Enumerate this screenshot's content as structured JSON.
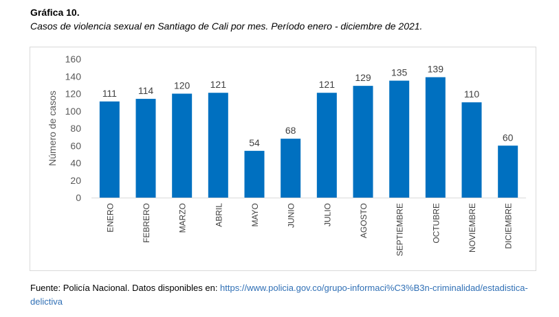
{
  "figure": {
    "title": "Gráfica 10.",
    "subtitle": "Casos de violencia sexual en Santiago de Cali por mes. Período enero - diciembre de 2021."
  },
  "source": {
    "prefix": "Fuente: Policía Nacional. Datos disponibles en: ",
    "link_text": "https://www.policia.gov.co/grupo-informaci%C3%B3n-criminalidad/estadistica-delictiva"
  },
  "colors": {
    "bar": "#0070c0",
    "axis_text": "#595959",
    "axis_line": "#d9d9d9"
  },
  "chart_data": {
    "type": "bar",
    "title": "",
    "xlabel": "",
    "ylabel": "Número de casos",
    "ylim": [
      0,
      160
    ],
    "yticks": [
      0,
      20,
      40,
      60,
      80,
      100,
      120,
      140,
      160
    ],
    "grid": false,
    "categories": [
      "ENERO",
      "FEBRERO",
      "MARZO",
      "ABRIL",
      "MAYO",
      "JUNIO",
      "JULIO",
      "AGOSTO",
      "SEPTIEMBRE",
      "OCTUBRE",
      "NOVIEMBRE",
      "DICIEMBRE"
    ],
    "values": [
      111,
      114,
      120,
      121,
      54,
      68,
      121,
      129,
      135,
      139,
      110,
      60
    ],
    "data_labels": true
  }
}
